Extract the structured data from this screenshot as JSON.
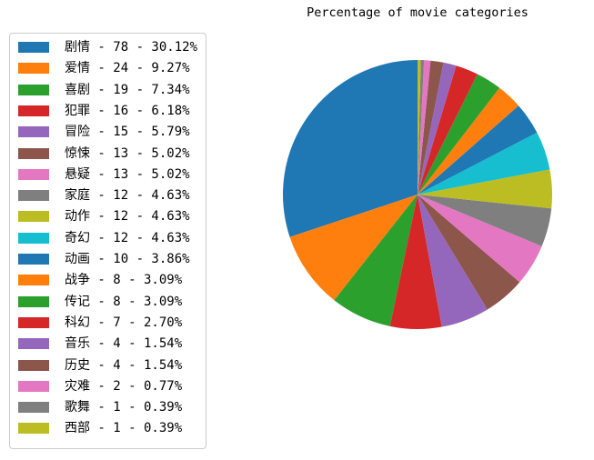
{
  "chart_data": {
    "type": "pie",
    "title": "Percentage of movie categories",
    "legend_position": "left",
    "slices": [
      {
        "label": "剧情 - 78 - 30.12%",
        "value": 78,
        "color": "#1f77b4"
      },
      {
        "label": "爱情 - 24 - 9.27%",
        "value": 24,
        "color": "#ff7f0e"
      },
      {
        "label": "喜剧 - 19 - 7.34%",
        "value": 19,
        "color": "#2ca02c"
      },
      {
        "label": "犯罪 - 16 - 6.18%",
        "value": 16,
        "color": "#d62728"
      },
      {
        "label": "冒险 - 15 - 5.79%",
        "value": 15,
        "color": "#9467bd"
      },
      {
        "label": "惊悚 - 13 - 5.02%",
        "value": 13,
        "color": "#8c564b"
      },
      {
        "label": "悬疑 - 13 - 5.02%",
        "value": 13,
        "color": "#e377c2"
      },
      {
        "label": "家庭 - 12 - 4.63%",
        "value": 12,
        "color": "#7f7f7f"
      },
      {
        "label": "动作 - 12 - 4.63%",
        "value": 12,
        "color": "#bcbd22"
      },
      {
        "label": "奇幻 - 12 - 4.63%",
        "value": 12,
        "color": "#17becf"
      },
      {
        "label": "动画 - 10 - 3.86%",
        "value": 10,
        "color": "#1f77b4"
      },
      {
        "label": "战争 - 8 - 3.09%",
        "value": 8,
        "color": "#ff7f0e"
      },
      {
        "label": "传记 - 8 - 3.09%",
        "value": 8,
        "color": "#2ca02c"
      },
      {
        "label": "科幻 - 7 - 2.70%",
        "value": 7,
        "color": "#d62728"
      },
      {
        "label": "音乐 - 4 - 1.54%",
        "value": 4,
        "color": "#9467bd"
      },
      {
        "label": "历史 - 4 - 1.54%",
        "value": 4,
        "color": "#8c564b"
      },
      {
        "label": "灾难 - 2 - 0.77%",
        "value": 2,
        "color": "#e377c2"
      },
      {
        "label": "歌舞 - 1 - 0.39%",
        "value": 1,
        "color": "#7f7f7f"
      },
      {
        "label": "西部 - 1 - 0.39%",
        "value": 1,
        "color": "#bcbd22"
      }
    ]
  }
}
